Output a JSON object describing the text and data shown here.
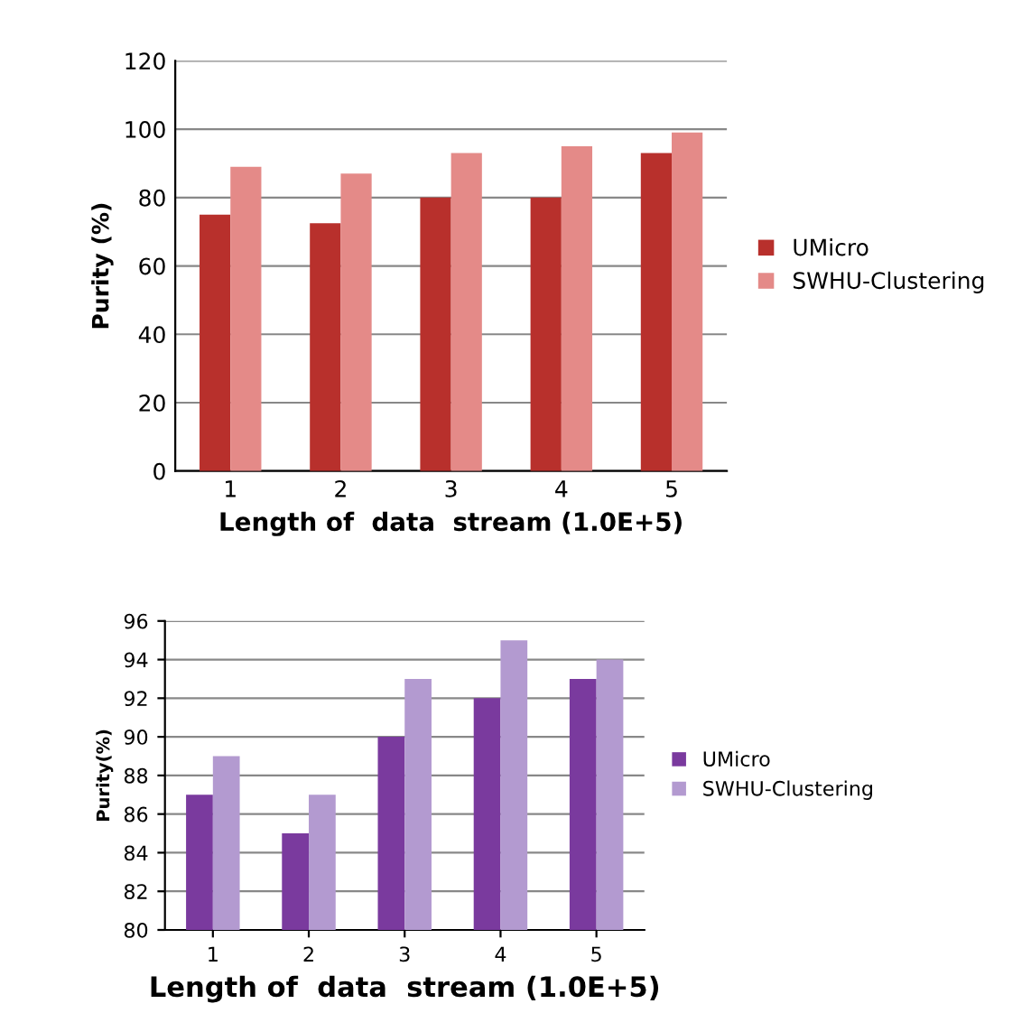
{
  "chart_data": [
    {
      "type": "bar",
      "xlabel": "Length of  data  stream (1.0E+5)",
      "ylabel": "Purity (%)",
      "categories": [
        "1",
        "2",
        "3",
        "4",
        "5"
      ],
      "series": [
        {
          "name": "UMicro",
          "color": "#b8302c",
          "values": [
            75,
            72.5,
            80,
            80,
            93
          ]
        },
        {
          "name": "SWHU-Clustering",
          "color": "#e48a88",
          "values": [
            89,
            87,
            93,
            95,
            99
          ]
        }
      ],
      "ylim": [
        0,
        120
      ],
      "yticks": [
        0,
        20,
        40,
        60,
        80,
        100,
        120
      ],
      "grid": "y",
      "legend": "right"
    },
    {
      "type": "bar",
      "xlabel": "Length of  data  stream (1.0E+5)",
      "ylabel": "Purity(%)",
      "categories": [
        "1",
        "2",
        "3",
        "4",
        "5"
      ],
      "series": [
        {
          "name": "UMicro",
          "color": "#7a3a9e",
          "values": [
            87,
            85,
            90,
            92,
            93
          ]
        },
        {
          "name": "SWHU-Clustering",
          "color": "#b39ad0",
          "values": [
            89,
            87,
            93,
            95,
            94
          ]
        }
      ],
      "ylim": [
        80,
        96
      ],
      "yticks": [
        80,
        82,
        84,
        86,
        88,
        90,
        92,
        94,
        96
      ],
      "grid": "y",
      "legend": "right"
    }
  ]
}
